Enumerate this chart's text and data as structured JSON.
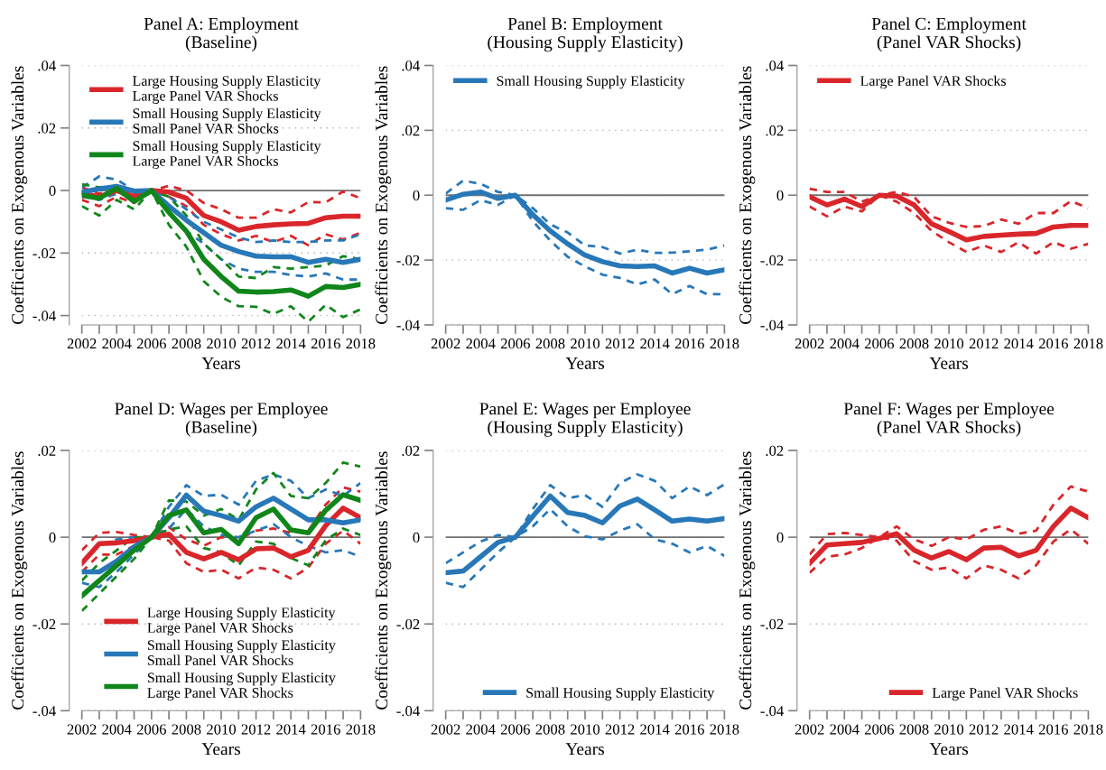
{
  "chart_data": [
    {
      "type": "line",
      "title": "Panel A: Employment\n(Baseline)",
      "xlabel": "Years",
      "ylabel": "Coefficients on Exogenous Variables",
      "x": [
        2002,
        2003,
        2004,
        2005,
        2006,
        2007,
        2008,
        2009,
        2010,
        2011,
        2012,
        2013,
        2014,
        2015,
        2016,
        2017,
        2018
      ],
      "series": [
        {
          "name": "Large Housing Supply Elasticity\nLarge Panel VAR Shocks",
          "color": "#d9262b",
          "values": [
            -0.001,
            -0.002,
            0.0,
            -0.002,
            0,
            -0.0005,
            -0.0025,
            -0.008,
            -0.01,
            -0.0127,
            -0.0115,
            -0.011,
            -0.0107,
            -0.0105,
            -0.0087,
            -0.0082,
            -0.0082
          ]
        },
        {
          "color": "#d9262b",
          "line_style": "dashed",
          "values": [
            0.001,
            -0.001,
            0.001,
            -0.001,
            0,
            0.0015,
            0.0,
            -0.004,
            -0.006,
            -0.0087,
            -0.0087,
            -0.006,
            -0.007,
            -0.0037,
            -0.0038,
            -0.0003,
            -0.0025
          ]
        },
        {
          "color": "#d9262b",
          "line_style": "dashed",
          "values": [
            -0.003,
            -0.005,
            -0.002,
            -0.004,
            0,
            -0.002,
            -0.005,
            -0.011,
            -0.014,
            -0.016,
            -0.0145,
            -0.0165,
            -0.0145,
            -0.0175,
            -0.014,
            -0.0157,
            -0.0135
          ]
        },
        {
          "name": "Small Housing Supply Elasticity\nSmall Panel VAR Shocks",
          "color": "#2878b8",
          "values": [
            -0.0005,
            0.0005,
            0.0013,
            -0.0002,
            0,
            -0.005,
            -0.0095,
            -0.0135,
            -0.0175,
            -0.0195,
            -0.021,
            -0.0212,
            -0.0212,
            -0.023,
            -0.022,
            -0.023,
            -0.022
          ]
        },
        {
          "color": "#2878b8",
          "line_style": "dashed",
          "values": [
            0.001,
            0.0045,
            0.0035,
            0.0,
            0,
            -0.002,
            -0.006,
            -0.01,
            -0.0125,
            -0.015,
            -0.0165,
            -0.016,
            -0.0165,
            -0.0165,
            -0.016,
            -0.016,
            -0.014
          ]
        },
        {
          "color": "#2878b8",
          "line_style": "dashed",
          "values": [
            -0.002,
            -0.003,
            -0.001,
            -0.002,
            0,
            -0.007,
            -0.013,
            -0.017,
            -0.022,
            -0.025,
            -0.026,
            -0.026,
            -0.027,
            -0.0275,
            -0.0265,
            -0.0285,
            -0.0285
          ]
        },
        {
          "name": "Small Housing Supply Elasticity\nLarge Panel VAR Shocks",
          "color": "#10861a",
          "values": [
            -0.0015,
            -0.0025,
            0.0007,
            -0.0035,
            0,
            -0.007,
            -0.013,
            -0.022,
            -0.0275,
            -0.0322,
            -0.0325,
            -0.0323,
            -0.0318,
            -0.0338,
            -0.0307,
            -0.031,
            -0.03
          ]
        },
        {
          "color": "#10861a",
          "line_style": "dashed",
          "values": [
            0.002,
            0.001,
            0.0015,
            -0.001,
            0,
            -0.002,
            -0.008,
            -0.017,
            -0.022,
            -0.0275,
            -0.028,
            -0.0245,
            -0.025,
            -0.0245,
            -0.024,
            -0.021,
            -0.022
          ]
        },
        {
          "color": "#10861a",
          "line_style": "dashed",
          "values": [
            -0.005,
            -0.008,
            -0.003,
            -0.006,
            0,
            -0.011,
            -0.018,
            -0.029,
            -0.034,
            -0.037,
            -0.0372,
            -0.0395,
            -0.037,
            -0.042,
            -0.0365,
            -0.0405,
            -0.038
          ]
        }
      ],
      "xlim": [
        2002,
        2018
      ],
      "ylim": [
        -0.043,
        0.04
      ],
      "xticks": [
        2002,
        {
          "value": 2003,
          "label": null
        },
        2004,
        {
          "value": 2005,
          "label": null
        },
        2006,
        {
          "value": 2007,
          "label": null
        },
        2008,
        {
          "value": 2009,
          "label": null
        },
        2010,
        {
          "value": 2011,
          "label": null
        },
        2012,
        {
          "value": 2013,
          "label": null
        },
        2014,
        {
          "value": 2015,
          "label": null
        },
        2016,
        {
          "value": 2017,
          "label": null
        },
        2018
      ],
      "yticks": [
        {
          "value": -0.04,
          "label": "-.04"
        },
        {
          "value": -0.02,
          "label": "-.02"
        },
        0,
        {
          "value": 0.02,
          "label": ".02"
        },
        {
          "value": 0.04,
          "label": ".04"
        }
      ],
      "grid": "y",
      "legend": "top left",
      "ref_lines": [
        {
          "axis": "y",
          "value": 0
        }
      ]
    },
    {
      "type": "line",
      "title": "Panel B: Employment\n(Housing Supply Elasticity)",
      "xlabel": "Years",
      "ylabel": "Coefficients on Exogenous Variables",
      "x": [
        2002,
        2003,
        2004,
        2005,
        2006,
        2007,
        2008,
        2009,
        2010,
        2011,
        2012,
        2013,
        2014,
        2015,
        2016,
        2017,
        2018
      ],
      "series": [
        {
          "name": "Small Housing Supply Elasticity",
          "color": "#2878b8",
          "values": [
            -0.0015,
            0.0003,
            0.001,
            -0.001,
            0,
            -0.006,
            -0.011,
            -0.015,
            -0.0185,
            -0.0205,
            -0.0218,
            -0.022,
            -0.0218,
            -0.024,
            -0.0225,
            -0.024,
            -0.023
          ]
        },
        {
          "color": "#2878b8",
          "line_style": "dashed",
          "values": [
            0.0005,
            0.0045,
            0.0035,
            0.001,
            0,
            -0.004,
            -0.009,
            -0.0115,
            -0.0155,
            -0.016,
            -0.018,
            -0.0168,
            -0.0178,
            -0.0177,
            -0.0173,
            -0.0168,
            -0.0155
          ]
        },
        {
          "color": "#2878b8",
          "line_style": "dashed",
          "values": [
            -0.004,
            -0.0045,
            -0.0015,
            -0.003,
            0,
            -0.008,
            -0.014,
            -0.019,
            -0.022,
            -0.0245,
            -0.0255,
            -0.0275,
            -0.026,
            -0.0305,
            -0.028,
            -0.0305,
            -0.0305
          ]
        }
      ],
      "xlim": [
        2002,
        2018
      ],
      "ylim": [
        -0.04,
        0.04
      ],
      "xticks": [
        2002,
        {
          "value": 2003,
          "label": null
        },
        2004,
        {
          "value": 2005,
          "label": null
        },
        2006,
        {
          "value": 2007,
          "label": null
        },
        2008,
        {
          "value": 2009,
          "label": null
        },
        2010,
        {
          "value": 2011,
          "label": null
        },
        2012,
        {
          "value": 2013,
          "label": null
        },
        2014,
        {
          "value": 2015,
          "label": null
        },
        2016,
        {
          "value": 2017,
          "label": null
        },
        2018
      ],
      "yticks": [
        {
          "value": -0.04,
          "label": "-.04"
        },
        {
          "value": -0.02,
          "label": "-.02"
        },
        0,
        {
          "value": 0.02,
          "label": ".02"
        },
        {
          "value": 0.04,
          "label": ".04"
        }
      ],
      "grid": "y",
      "legend": "top left",
      "ref_lines": [
        {
          "axis": "y",
          "value": 0
        }
      ]
    },
    {
      "type": "line",
      "title": "Panel C: Employment\n(Panel VAR Shocks)",
      "xlabel": "Years",
      "ylabel": "Coefficients on Exogenous Variables",
      "x": [
        2002,
        2003,
        2004,
        2005,
        2006,
        2007,
        2008,
        2009,
        2010,
        2011,
        2012,
        2013,
        2014,
        2015,
        2016,
        2017,
        2018
      ],
      "series": [
        {
          "name": "Large Panel VAR Shocks",
          "color": "#d9262b",
          "values": [
            -0.0005,
            -0.003,
            -0.0012,
            -0.0035,
            0,
            -0.0003,
            -0.003,
            -0.0088,
            -0.0112,
            -0.0138,
            -0.0127,
            -0.0123,
            -0.012,
            -0.0118,
            -0.0098,
            -0.0093,
            -0.0093
          ]
        },
        {
          "color": "#d9262b",
          "line_style": "dashed",
          "values": [
            0.002,
            0.001,
            0.001,
            -0.002,
            0,
            0.001,
            -0.0005,
            -0.0065,
            -0.0085,
            -0.0098,
            -0.0095,
            -0.0075,
            -0.0088,
            -0.0055,
            -0.0055,
            -0.0018,
            -0.004
          ]
        },
        {
          "color": "#d9262b",
          "line_style": "dashed",
          "values": [
            -0.0035,
            -0.0065,
            -0.0035,
            -0.005,
            0,
            -0.002,
            -0.0055,
            -0.011,
            -0.0145,
            -0.0175,
            -0.0155,
            -0.0175,
            -0.0145,
            -0.018,
            -0.0145,
            -0.0165,
            -0.015
          ]
        }
      ],
      "xlim": [
        2002,
        2018
      ],
      "ylim": [
        -0.04,
        0.04
      ],
      "xticks": [
        2002,
        {
          "value": 2003,
          "label": null
        },
        2004,
        {
          "value": 2005,
          "label": null
        },
        2006,
        {
          "value": 2007,
          "label": null
        },
        2008,
        {
          "value": 2009,
          "label": null
        },
        2010,
        {
          "value": 2011,
          "label": null
        },
        2012,
        {
          "value": 2013,
          "label": null
        },
        2014,
        {
          "value": 2015,
          "label": null
        },
        2016,
        {
          "value": 2017,
          "label": null
        },
        2018
      ],
      "yticks": [
        {
          "value": -0.04,
          "label": "-.04"
        },
        {
          "value": -0.02,
          "label": "-.02"
        },
        0,
        {
          "value": 0.02,
          "label": ".02"
        },
        {
          "value": 0.04,
          "label": ".04"
        }
      ],
      "grid": "y",
      "legend": "top left",
      "ref_lines": [
        {
          "axis": "y",
          "value": 0
        }
      ]
    },
    {
      "type": "line",
      "title": "Panel D: Wages per Employee\n(Baseline)",
      "xlabel": "Years",
      "ylabel": "Coefficients on Exogenous Variables",
      "x": [
        2002,
        2003,
        2004,
        2005,
        2006,
        2007,
        2008,
        2009,
        2010,
        2011,
        2012,
        2013,
        2014,
        2015,
        2016,
        2017,
        2018
      ],
      "series": [
        {
          "name": "Large Housing Supply Elasticity\nLarge Panel VAR Shocks",
          "color": "#d9262b",
          "values": [
            -0.006,
            -0.0015,
            -0.0013,
            -0.0008,
            0,
            0.0007,
            -0.0035,
            -0.005,
            -0.0035,
            -0.0052,
            -0.0027,
            -0.0025,
            -0.0045,
            -0.003,
            0.0027,
            0.0067,
            0.0045
          ]
        },
        {
          "color": "#d9262b",
          "line_style": "dashed",
          "values": [
            -0.003,
            0.001,
            0.0012,
            0.0005,
            0,
            0.0023,
            -0.0005,
            -0.002,
            0.0,
            -0.0005,
            0.0015,
            0.002,
            0.001,
            0.0015,
            0.0075,
            0.0115,
            0.0105
          ]
        },
        {
          "color": "#d9262b",
          "line_style": "dashed",
          "values": [
            -0.008,
            -0.004,
            -0.004,
            -0.002,
            0,
            -0.0008,
            -0.006,
            -0.008,
            -0.0075,
            -0.0095,
            -0.007,
            -0.0075,
            -0.0095,
            -0.007,
            -0.0015,
            0.0015,
            -0.0015
          ]
        },
        {
          "name": "Small Housing Supply Elasticity\nSmall Panel VAR Shocks",
          "color": "#2878b8",
          "values": [
            -0.008,
            -0.008,
            -0.0055,
            -0.0022,
            0,
            0.0045,
            0.0097,
            0.006,
            0.005,
            0.0037,
            0.007,
            0.009,
            0.0065,
            0.004,
            0.004,
            0.0033,
            0.004
          ]
        },
        {
          "color": "#2878b8",
          "line_style": "dashed",
          "values": [
            -0.006,
            -0.002,
            -0.0005,
            0.0,
            0,
            0.007,
            0.012,
            0.0095,
            0.0098,
            0.0075,
            0.013,
            0.0145,
            0.013,
            0.009,
            0.011,
            0.0095,
            0.0125
          ]
        },
        {
          "color": "#2878b8",
          "line_style": "dashed",
          "values": [
            -0.0105,
            -0.0115,
            -0.008,
            -0.004,
            0,
            0.002,
            0.0065,
            0.0025,
            0.0005,
            0.0,
            0.0015,
            0.003,
            0.0,
            -0.002,
            -0.0035,
            -0.003,
            -0.0045
          ]
        },
        {
          "name": "Small Housing Supply Elasticity\nLarge Panel VAR Shocks",
          "color": "#10861a",
          "values": [
            -0.0135,
            -0.01,
            -0.0065,
            -0.003,
            0,
            0.005,
            0.0063,
            0.001,
            0.0018,
            -0.0015,
            0.0045,
            0.0065,
            0.0017,
            0.001,
            0.0062,
            0.0098,
            0.0085
          ]
        },
        {
          "color": "#10861a",
          "line_style": "dashed",
          "values": [
            -0.01,
            -0.006,
            -0.003,
            0.0,
            0,
            0.0085,
            0.0082,
            0.005,
            0.0065,
            0.004,
            0.011,
            0.0148,
            0.0095,
            0.009,
            0.0125,
            0.0172,
            0.0163
          ]
        },
        {
          "color": "#10861a",
          "line_style": "dashed",
          "values": [
            -0.017,
            -0.013,
            -0.009,
            -0.005,
            0,
            0.0018,
            0.0025,
            -0.0025,
            -0.0035,
            -0.0065,
            -0.001,
            -0.0015,
            -0.0048,
            -0.0065,
            -0.0007,
            0.002,
            0.0005
          ]
        }
      ],
      "xlim": [
        2002,
        2018
      ],
      "ylim": [
        -0.04,
        0.02
      ],
      "xticks": [
        2002,
        {
          "value": 2003,
          "label": null
        },
        2004,
        {
          "value": 2005,
          "label": null
        },
        2006,
        {
          "value": 2007,
          "label": null
        },
        2008,
        {
          "value": 2009,
          "label": null
        },
        2010,
        {
          "value": 2011,
          "label": null
        },
        2012,
        {
          "value": 2013,
          "label": null
        },
        2014,
        {
          "value": 2015,
          "label": null
        },
        2016,
        {
          "value": 2017,
          "label": null
        },
        2018
      ],
      "yticks": [
        {
          "value": -0.04,
          "label": "-.04"
        },
        {
          "value": -0.02,
          "label": "-.02"
        },
        0,
        {
          "value": 0.02,
          "label": ".02"
        }
      ],
      "grid": "y",
      "legend": "bottom",
      "ref_lines": [
        {
          "axis": "y",
          "value": 0
        }
      ]
    },
    {
      "type": "line",
      "title": "Panel E: Wages per Employee\n(Housing Supply Elasticity)",
      "xlabel": "Years",
      "ylabel": "Coefficients on Exogenous Variables",
      "x": [
        2002,
        2003,
        2004,
        2005,
        2006,
        2007,
        2008,
        2009,
        2010,
        2011,
        2012,
        2013,
        2014,
        2015,
        2016,
        2017,
        2018
      ],
      "series": [
        {
          "name": "Small Housing Supply Elasticity",
          "color": "#2878b8",
          "values": [
            -0.0082,
            -0.0078,
            -0.0045,
            -0.0012,
            0,
            0.0048,
            0.0095,
            0.0057,
            0.005,
            0.0033,
            0.0072,
            0.0088,
            0.0063,
            0.0037,
            0.0042,
            0.0037,
            0.0043
          ]
        },
        {
          "color": "#2878b8",
          "line_style": "dashed",
          "values": [
            -0.006,
            -0.0035,
            -0.001,
            0.0005,
            0,
            0.0065,
            0.012,
            0.009,
            0.0097,
            0.007,
            0.0125,
            0.0145,
            0.013,
            0.009,
            0.0117,
            0.0097,
            0.0122
          ]
        },
        {
          "color": "#2878b8",
          "line_style": "dashed",
          "values": [
            -0.0105,
            -0.0115,
            -0.0075,
            -0.0035,
            0,
            0.0025,
            0.0065,
            0.0025,
            0.0002,
            -0.0005,
            0.0015,
            0.003,
            -0.0005,
            -0.0015,
            -0.0035,
            -0.002,
            -0.0043
          ]
        }
      ],
      "xlim": [
        2002,
        2018
      ],
      "ylim": [
        -0.04,
        0.02
      ],
      "xticks": [
        2002,
        {
          "value": 2003,
          "label": null
        },
        2004,
        {
          "value": 2005,
          "label": null
        },
        2006,
        {
          "value": 2007,
          "label": null
        },
        2008,
        {
          "value": 2009,
          "label": null
        },
        2010,
        {
          "value": 2011,
          "label": null
        },
        2012,
        {
          "value": 2013,
          "label": null
        },
        2014,
        {
          "value": 2015,
          "label": null
        },
        2016,
        {
          "value": 2017,
          "label": null
        },
        2018
      ],
      "yticks": [
        {
          "value": -0.04,
          "label": "-.04"
        },
        {
          "value": -0.02,
          "label": "-.02"
        },
        0,
        {
          "value": 0.02,
          "label": ".02"
        }
      ],
      "grid": "y",
      "legend": "bottom right",
      "ref_lines": [
        {
          "axis": "y",
          "value": 0
        }
      ]
    },
    {
      "type": "line",
      "title": "Panel F: Wages per Employee\n(Panel VAR Shocks)",
      "xlabel": "Years",
      "ylabel": "Coefficients on Exogenous Variables",
      "x": [
        2002,
        2003,
        2004,
        2005,
        2006,
        2007,
        2008,
        2009,
        2010,
        2011,
        2012,
        2013,
        2014,
        2015,
        2016,
        2017,
        2018
      ],
      "series": [
        {
          "name": "Large Panel VAR Shocks",
          "color": "#d9262b",
          "values": [
            -0.006,
            -0.0018,
            -0.0015,
            -0.0012,
            -0.0003,
            0.0008,
            -0.003,
            -0.0048,
            -0.0033,
            -0.0052,
            -0.0025,
            -0.0023,
            -0.0043,
            -0.003,
            0.0025,
            0.0067,
            0.0045
          ]
        },
        {
          "color": "#d9262b",
          "line_style": "dashed",
          "values": [
            -0.004,
            0.0007,
            0.001,
            0.0005,
            0,
            0.0025,
            -0.0005,
            -0.002,
            0.0,
            -0.0005,
            0.0017,
            0.0025,
            0.0008,
            0.0015,
            0.0075,
            0.0117,
            0.0105
          ]
        },
        {
          "color": "#d9262b",
          "line_style": "dashed",
          "values": [
            -0.0082,
            -0.0045,
            -0.004,
            -0.0025,
            0,
            -0.0008,
            -0.0055,
            -0.0075,
            -0.007,
            -0.0095,
            -0.0065,
            -0.0075,
            -0.0095,
            -0.0065,
            -0.001,
            0.0018,
            -0.0015
          ]
        }
      ],
      "xlim": [
        2002,
        2018
      ],
      "ylim": [
        -0.04,
        0.02
      ],
      "xticks": [
        2002,
        {
          "value": 2003,
          "label": null
        },
        2004,
        {
          "value": 2005,
          "label": null
        },
        2006,
        {
          "value": 2007,
          "label": null
        },
        2008,
        {
          "value": 2009,
          "label": null
        },
        2010,
        {
          "value": 2011,
          "label": null
        },
        2012,
        {
          "value": 2013,
          "label": null
        },
        2014,
        {
          "value": 2015,
          "label": null
        },
        2016,
        {
          "value": 2017,
          "label": null
        },
        2018
      ],
      "yticks": [
        {
          "value": -0.04,
          "label": "-.04"
        },
        {
          "value": -0.02,
          "label": "-.02"
        },
        0,
        {
          "value": 0.02,
          "label": ".02"
        }
      ],
      "grid": "y",
      "legend": "bottom right",
      "ref_lines": [
        {
          "axis": "y",
          "value": 0
        }
      ]
    }
  ]
}
